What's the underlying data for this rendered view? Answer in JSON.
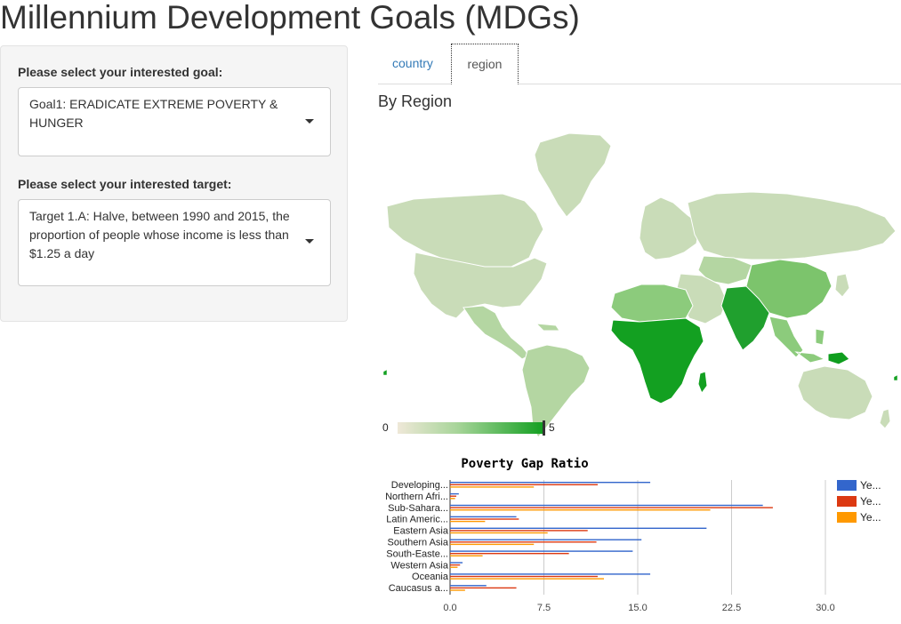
{
  "page": {
    "title": "Millennium Development Goals (MDGs)"
  },
  "sidebar": {
    "goal_label": "Please select your interested goal:",
    "goal_value": "Goal1: ERADICATE EXTREME POVERTY & HUNGER",
    "target_label": "Please select your interested target:",
    "target_value": "Target 1.A: Halve, between 1990 and 2015, the proportion of people whose income is less than $1.25 a day"
  },
  "tabs": [
    {
      "label": "country",
      "active": false
    },
    {
      "label": "region",
      "active": true
    }
  ],
  "main": {
    "section_title": "By Region"
  },
  "map": {
    "legend_min": "0",
    "legend_max": "5",
    "colors": {
      "low": "#efe8d8",
      "mid": "#a8d59a",
      "high": "#0f9e1e",
      "nodata": "#f5f5f5"
    }
  },
  "chart_data": {
    "type": "bar",
    "orientation": "horizontal",
    "title": "Poverty Gap Ratio",
    "categories": [
      "Developing...",
      "Northern Afri...",
      "Sub-Sahara...",
      "Latin Americ...",
      "Eastern Asia",
      "Southern Asia",
      "South-Easte...",
      "Western Asia",
      "Oceania",
      "Caucasus a..."
    ],
    "series": [
      {
        "name": "Ye...",
        "color": "#3366cc",
        "values": [
          16.0,
          0.7,
          25.0,
          5.3,
          20.5,
          15.3,
          14.6,
          1.0,
          16.0,
          2.9
        ]
      },
      {
        "name": "Ye...",
        "color": "#dc3912",
        "values": [
          11.8,
          0.5,
          25.8,
          5.5,
          11.0,
          11.7,
          9.5,
          0.8,
          11.8,
          5.3
        ]
      },
      {
        "name": "Ye...",
        "color": "#ff9900",
        "values": [
          6.7,
          0.4,
          20.8,
          2.8,
          7.8,
          6.7,
          2.6,
          0.6,
          12.3,
          1.2
        ]
      }
    ],
    "ticks": [
      "0.0",
      "7.5",
      "15.0",
      "22.5",
      "30.0"
    ],
    "xlim": [
      0,
      30
    ],
    "grid": true,
    "legend": "right"
  }
}
